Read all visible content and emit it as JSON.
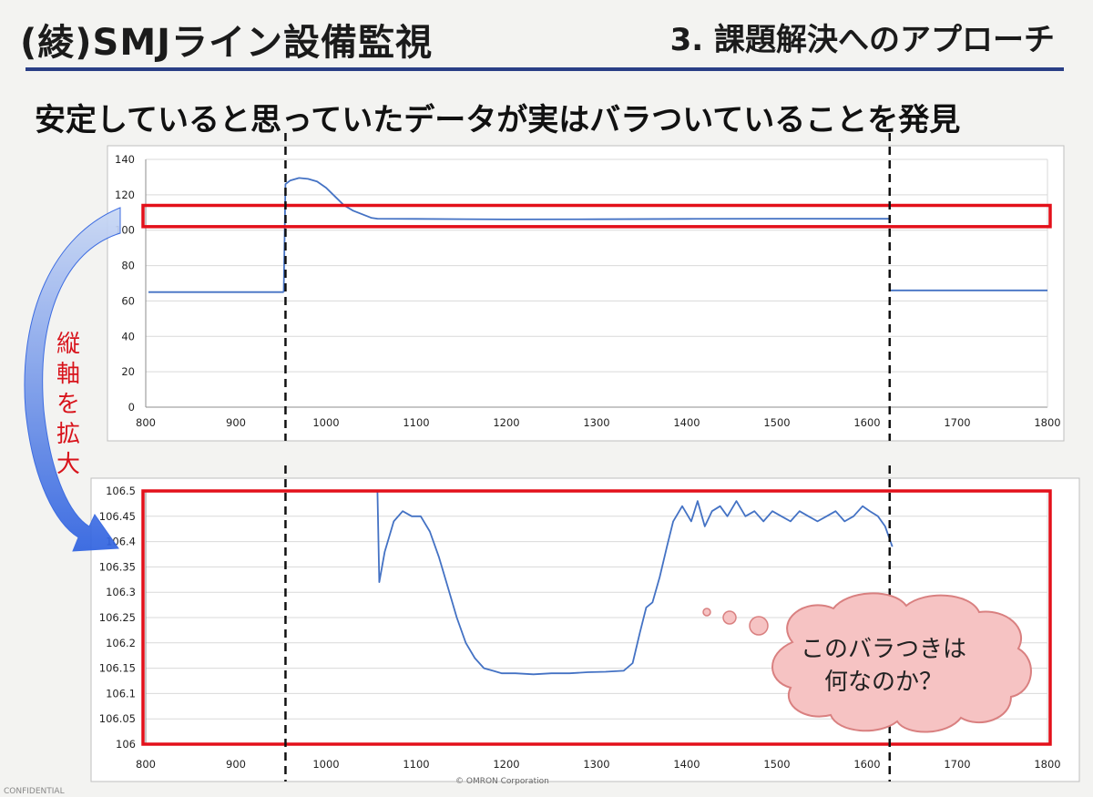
{
  "header": {
    "title": "(綾)SMJライン設備監視",
    "section": "3. 課題解決へのアプローチ",
    "headline": "安定していると思っていたデータが実はバラついていることを発見"
  },
  "annotations": {
    "side_note": "縦軸を拡大",
    "callout_line1": "このバラつきは",
    "callout_line2": "何なのか？"
  },
  "footer": {
    "left": "CONFIDENTIAL",
    "center": "© OMRON Corporation"
  },
  "colors": {
    "series": "#4472c4",
    "highlight": "#e3101a",
    "grid": "#d9d9d9",
    "callout_fill": "#f6c3c3",
    "callout_stroke": "#d98080",
    "arrow": "#3d6fe0"
  },
  "chart_data": [
    {
      "type": "line",
      "title": "",
      "xlabel": "",
      "ylabel": "",
      "xlim": [
        800,
        1800
      ],
      "ylim": [
        0,
        140
      ],
      "xticks": [
        800,
        900,
        1000,
        1100,
        1200,
        1300,
        1400,
        1500,
        1600,
        1700,
        1800
      ],
      "yticks": [
        0,
        20,
        40,
        60,
        80,
        100,
        120,
        140
      ],
      "ytick_labels": [
        "0",
        "20",
        "40",
        "60",
        "80",
        "100",
        "120",
        "140"
      ],
      "grid": true,
      "legend": "none",
      "series": [
        {
          "segments": [
            {
              "x": [
                803,
                953
              ],
              "y": [
                65,
                65
              ]
            },
            {
              "x": [
                953,
                955,
                960,
                970,
                980,
                990,
                1000,
                1010,
                1020,
                1030,
                1040,
                1050,
                1057,
                1100,
                1200,
                1300,
                1400,
                1500,
                1600,
                1624
              ],
              "y": [
                65,
                126,
                128,
                129.5,
                129,
                127.5,
                124,
                119,
                114,
                111,
                109,
                107,
                106.5,
                106.4,
                106.1,
                106.2,
                106.4,
                106.5,
                106.45,
                106.45
              ]
            },
            {
              "x": [
                1626,
                1800
              ],
              "y": [
                66,
                66
              ]
            }
          ]
        }
      ],
      "markers": [
        {
          "kind": "dashed-vertical",
          "x": 955
        },
        {
          "kind": "dashed-vertical",
          "x": 1625
        },
        {
          "kind": "highlight-band",
          "y_low": 102,
          "y_high": 114
        }
      ]
    },
    {
      "type": "line",
      "title": "",
      "xlabel": "",
      "ylabel": "",
      "xlim": [
        800,
        1800
      ],
      "ylim": [
        106,
        106.5
      ],
      "xticks": [
        800,
        900,
        1000,
        1100,
        1200,
        1300,
        1400,
        1500,
        1600,
        1700,
        1800
      ],
      "yticks": [
        106,
        106.05,
        106.1,
        106.15,
        106.2,
        106.25,
        106.3,
        106.35,
        106.4,
        106.45,
        106.5
      ],
      "ytick_labels": [
        "106",
        "106.05",
        "106.1",
        "106.15",
        "106.2",
        "106.25",
        "106.3",
        "106.35",
        "106.4",
        "106.45",
        "106.5"
      ],
      "grid": true,
      "legend": "none",
      "series": [
        {
          "segments": [
            {
              "x": [
                1057,
                1059,
                1065,
                1075,
                1085,
                1095,
                1105,
                1115,
                1125,
                1135,
                1145,
                1155,
                1165,
                1175,
                1185,
                1195,
                1210,
                1230,
                1250,
                1270,
                1290,
                1310,
                1330,
                1340,
                1348,
                1355,
                1362,
                1370,
                1378,
                1385,
                1395,
                1405,
                1412,
                1420,
                1428,
                1437,
                1445,
                1455,
                1465,
                1475,
                1485,
                1495,
                1505,
                1515,
                1525,
                1535,
                1545,
                1555,
                1565,
                1575,
                1585,
                1595,
                1603,
                1612,
                1620,
                1628
              ],
              "y": [
                106.5,
                106.32,
                106.38,
                106.44,
                106.46,
                106.45,
                106.45,
                106.42,
                106.37,
                106.31,
                106.25,
                106.2,
                106.17,
                106.15,
                106.145,
                106.14,
                106.14,
                106.138,
                106.14,
                106.14,
                106.142,
                106.143,
                106.145,
                106.16,
                106.22,
                106.27,
                106.28,
                106.33,
                106.39,
                106.44,
                106.47,
                106.44,
                106.48,
                106.43,
                106.46,
                106.47,
                106.45,
                106.48,
                106.45,
                106.46,
                106.44,
                106.46,
                106.45,
                106.44,
                106.46,
                106.45,
                106.44,
                106.45,
                106.46,
                106.44,
                106.45,
                106.47,
                106.46,
                106.45,
                106.43,
                106.39
              ]
            }
          ]
        }
      ],
      "markers": [
        {
          "kind": "dashed-vertical",
          "x": 955
        },
        {
          "kind": "dashed-vertical",
          "x": 1625
        },
        {
          "kind": "highlight-band",
          "y_low": 106,
          "y_high": 106.5
        }
      ]
    }
  ]
}
